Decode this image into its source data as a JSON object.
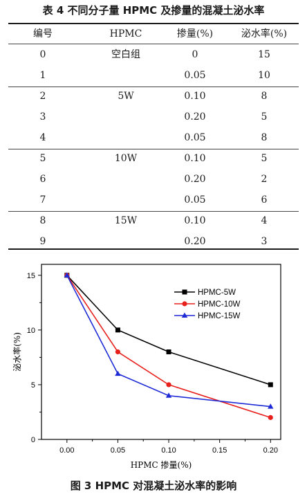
{
  "table": {
    "title": "表 4   不同分子量 HPMC 及掺量的混凝土泌水率",
    "headers": [
      "编号",
      "HPMC",
      "掺量(%)",
      "泌水率(%)"
    ],
    "rows": [
      [
        "0",
        "空白组",
        "0",
        "15"
      ],
      [
        "1",
        "",
        "0.05",
        "10"
      ],
      [
        "2",
        "5W",
        "0.10",
        "8"
      ],
      [
        "3",
        "",
        "0.20",
        "5"
      ],
      [
        "4",
        "",
        "0.05",
        "8"
      ],
      [
        "5",
        "10W",
        "0.10",
        "5"
      ],
      [
        "6",
        "",
        "0.20",
        "2"
      ],
      [
        "7",
        "",
        "0.05",
        "6"
      ],
      [
        "8",
        "15W",
        "0.10",
        "4"
      ],
      [
        "9",
        "",
        "0.20",
        "3"
      ]
    ]
  },
  "chart_data": {
    "type": "line",
    "x": [
      0.0,
      0.05,
      0.1,
      0.2
    ],
    "xlabel": "HPMC 掺量(%)",
    "ylabel": "泌水率(%)",
    "xlim": [
      -0.025,
      0.21
    ],
    "ylim": [
      0,
      16
    ],
    "xticks": [
      "0.00",
      "0.05",
      "0.10",
      "0.15",
      "0.20"
    ],
    "yticks": [
      "0",
      "5",
      "10",
      "15"
    ],
    "legend_position": "top-right",
    "grid": false,
    "series": [
      {
        "name": "HPMC-5W",
        "values": [
          15,
          10,
          8,
          5
        ],
        "color": "#000000",
        "marker": "square"
      },
      {
        "name": "HPMC-10W",
        "values": [
          15,
          8,
          5,
          2
        ],
        "color": "#e8201c",
        "marker": "circle"
      },
      {
        "name": "HPMC-15W",
        "values": [
          15,
          6,
          4,
          3
        ],
        "color": "#1d2ad6",
        "marker": "triangle"
      }
    ]
  },
  "figure": {
    "caption": "图 3   HPMC 对混凝土泌水率的影响"
  }
}
